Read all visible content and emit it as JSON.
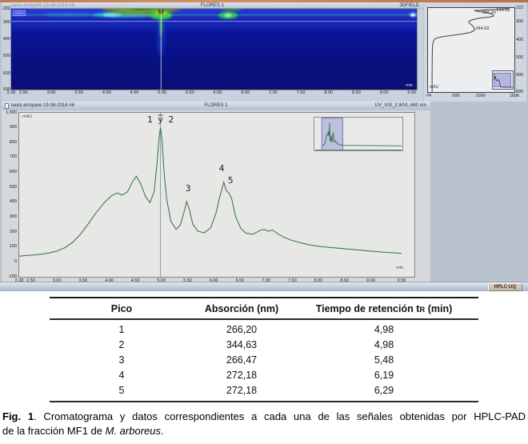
{
  "colors": {
    "frame_tan": "#c27a50",
    "software_bg": "#b9c3d0",
    "heat_blue_deep": "#0a1498",
    "trace_green": "#2e6e48",
    "selection_fill": "#b4b6e0",
    "selection_border": "#7d7fc4",
    "status_button_text": "#4a1d16"
  },
  "top_left_panel": {
    "title": "FLORES 1",
    "mode_label": "3DFIELD",
    "corner_tag": "mAU",
    "min_label": "min",
    "y_ticks": [
      "222",
      "300",
      "400",
      "500",
      "600",
      "695"
    ],
    "x_ticks": [
      "2.28",
      "2.50",
      "3.00",
      "3.50",
      "4.00",
      "4.50",
      "5.00",
      "5.50",
      "6.00",
      "6.50",
      "7.00",
      "7.50",
      "8.00",
      "8.50",
      "9.00",
      "9.50"
    ]
  },
  "spectrum_panel": {
    "unit_label": "mAU",
    "y_ticks": [
      "222",
      "300",
      "400",
      "500",
      "600",
      "695"
    ],
    "x_ticks": [
      "-74",
      "500",
      "1000",
      "1696"
    ]
  },
  "main_panel": {
    "injection": "laura arroyave 19-08-2016 #6",
    "title": "FLORES 1",
    "channel": "UV_VIS_2 WVL:440 nm",
    "unit_label": "mAU",
    "min_label": "min",
    "y_ticks": [
      "1.000",
      "900",
      "800",
      "700",
      "600",
      "500",
      "400",
      "300",
      "200",
      "100",
      "0",
      "-100"
    ],
    "x_ticks": [
      "2.28",
      "2.50",
      "3.00",
      "3.50",
      "4.00",
      "4.50",
      "5.00",
      "5.50",
      "6.00",
      "6.50",
      "7.00",
      "7.50",
      "8.00",
      "8.50",
      "9.00",
      "9.59"
    ]
  },
  "status_bar": {
    "button": "HPLC-UQ"
  },
  "table": {
    "col_pico": "Pico",
    "col_abs": "Absorción (nm)",
    "col_ret_prefix": "Tiempo de retención t",
    "col_ret_sub": "R",
    "col_ret_suffix": " (min)",
    "rows": [
      [
        "1",
        "266,20",
        "4,98"
      ],
      [
        "2",
        "344,63",
        "4,98"
      ],
      [
        "3",
        "266,47",
        "5,48"
      ],
      [
        "4",
        "272,18",
        "6,19"
      ],
      [
        "5",
        "272,18",
        "6,29"
      ]
    ]
  },
  "caption": {
    "fig_label": "Fig. 1",
    "line1_rest": ". Cromatograma y datos correspondientes a cada una de las señales obtenidas por HPLC-PAD",
    "line2_prefix": "de la fracción MF1 de ",
    "species": "M. arboreus",
    "line2_suffix": "."
  },
  "chart_data": [
    {
      "id": "contour_3d",
      "type": "heatmap",
      "title": "FLORES 1",
      "x_label": "min",
      "y_label": "nm",
      "x_range_min": [
        2.28,
        9.59
      ],
      "wavelength_range": [
        222,
        695
      ],
      "cursor": {
        "t": 4.98,
        "nm": 295
      },
      "hotspots": [
        {
          "t": 5.9,
          "nm": 258,
          "kind": "band-row"
        },
        {
          "t": 3.3,
          "nm": 256,
          "kind": "cyan-faint"
        },
        {
          "t": 4.3,
          "nm": 257,
          "kind": "cyan-band"
        },
        {
          "t": 4.62,
          "nm": 223,
          "kind": "arc-yellow"
        },
        {
          "t": 6.25,
          "nm": 224,
          "kind": "green-top"
        },
        {
          "t": 6.19,
          "nm": 260,
          "kind": "green"
        },
        {
          "t": 4.98,
          "nm": 260,
          "kind": "strong-green"
        },
        {
          "t": 9.52,
          "nm": 258,
          "kind": "white-dot"
        }
      ]
    },
    {
      "id": "uv_spectrum",
      "type": "line",
      "orientation": "vertical",
      "x_label": "mAU",
      "y_label": "nm",
      "absorbance_range": [
        -74,
        1696
      ],
      "wavelength_range": [
        222,
        695
      ],
      "points": [
        [
          222,
          1520
        ],
        [
          225,
          1550
        ],
        [
          228,
          1480
        ],
        [
          232,
          1120
        ],
        [
          236,
          890
        ],
        [
          240,
          920
        ],
        [
          245,
          1060
        ],
        [
          250,
          1150
        ],
        [
          256,
          1230
        ],
        [
          262,
          1265
        ],
        [
          267,
          1270
        ],
        [
          272,
          1205
        ],
        [
          278,
          1010
        ],
        [
          285,
          880
        ],
        [
          292,
          790
        ],
        [
          300,
          760
        ],
        [
          308,
          778
        ],
        [
          318,
          822
        ],
        [
          328,
          856
        ],
        [
          336,
          872
        ],
        [
          344,
          880
        ],
        [
          352,
          856
        ],
        [
          360,
          786
        ],
        [
          368,
          635
        ],
        [
          376,
          415
        ],
        [
          384,
          210
        ],
        [
          392,
          95
        ],
        [
          400,
          55
        ],
        [
          415,
          30
        ],
        [
          435,
          20
        ],
        [
          465,
          15
        ],
        [
          500,
          13
        ],
        [
          550,
          11
        ],
        [
          610,
          10
        ],
        [
          695,
          9
        ]
      ],
      "annotations": [
        {
          "text": "219.58",
          "nm": 236,
          "mAU": 1330
        },
        {
          "text": "266.20",
          "nm": 252,
          "mAU": 1040
        },
        {
          "text": "344.63",
          "nm": 341,
          "mAU": 900
        }
      ]
    },
    {
      "id": "chromatogram",
      "type": "line",
      "title": "FLORES 1",
      "x_label": "min",
      "y_label": "mAU",
      "x_range": [
        2.28,
        9.59
      ],
      "y_range": [
        -100,
        1000
      ],
      "cursor_x": 4.98,
      "x": [
        2.28,
        2.4,
        2.55,
        2.7,
        2.85,
        3.0,
        3.15,
        3.3,
        3.45,
        3.6,
        3.75,
        3.9,
        4.05,
        4.15,
        4.25,
        4.35,
        4.45,
        4.52,
        4.6,
        4.7,
        4.78,
        4.86,
        4.92,
        4.96,
        4.98,
        5.01,
        5.05,
        5.1,
        5.18,
        5.28,
        5.36,
        5.44,
        5.48,
        5.53,
        5.6,
        5.7,
        5.82,
        5.94,
        6.04,
        6.12,
        6.19,
        6.24,
        6.29,
        6.34,
        6.42,
        6.52,
        6.62,
        6.75,
        6.88,
        6.96,
        7.04,
        7.12,
        7.22,
        7.34,
        7.48,
        7.64,
        7.84,
        8.05,
        8.3,
        8.6,
        8.95,
        9.25,
        9.59
      ],
      "y": [
        38,
        42,
        46,
        52,
        60,
        72,
        95,
        130,
        185,
        255,
        330,
        395,
        445,
        462,
        448,
        470,
        540,
        575,
        525,
        435,
        398,
        470,
        680,
        850,
        900,
        820,
        600,
        420,
        272,
        218,
        248,
        345,
        405,
        355,
        252,
        205,
        196,
        228,
        325,
        445,
        535,
        478,
        462,
        425,
        300,
        222,
        192,
        186,
        210,
        218,
        206,
        214,
        190,
        165,
        146,
        130,
        113,
        103,
        94,
        85,
        74,
        65,
        58
      ],
      "annotations": [
        {
          "text": "1 y 2",
          "x": 4.98,
          "y": 950
        },
        {
          "text": "3",
          "x": 5.51,
          "y": 490
        },
        {
          "text": "4",
          "x": 6.15,
          "y": 625
        },
        {
          "text": "5",
          "x": 6.32,
          "y": 545
        }
      ],
      "inset": {
        "x_range": [
          0,
          30
        ],
        "selection": [
          2.28,
          9.59
        ]
      }
    }
  ]
}
